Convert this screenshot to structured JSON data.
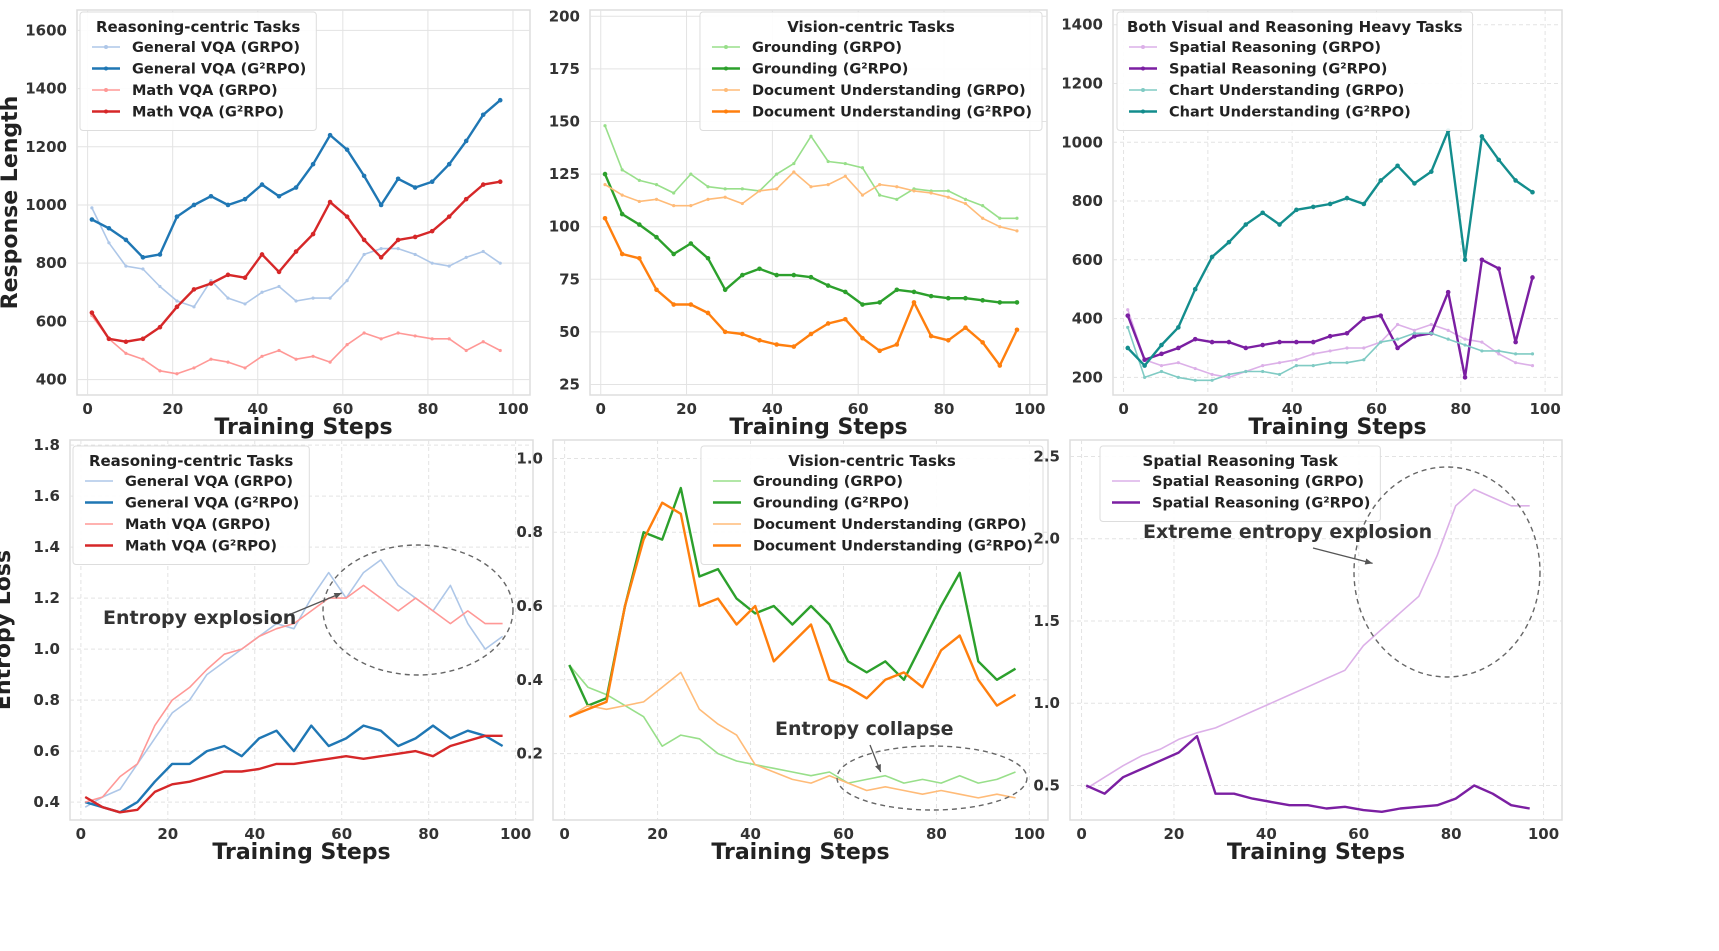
{
  "chart_data": [
    {
      "type": "line",
      "legend_title": "Reasoning-centric Tasks",
      "legend_placement": "top-left",
      "xlabel": "Training Steps",
      "ylabel": "Response Length",
      "xlim": [
        -2.5,
        104
      ],
      "ylim": [
        347,
        1670
      ],
      "xticks": [
        0,
        20,
        40,
        60,
        80,
        100
      ],
      "yticks": [
        400,
        600,
        800,
        1000,
        1200,
        1400,
        1600
      ],
      "grid": "solid",
      "x": [
        1,
        5,
        9,
        13,
        17,
        21,
        25,
        29,
        33,
        37,
        41,
        45,
        49,
        53,
        57,
        61,
        65,
        69,
        73,
        77,
        81,
        85,
        89,
        93,
        97
      ],
      "series": [
        {
          "name": "General VQA (GRPO)",
          "color": "#aec7e8",
          "values": [
            990,
            870,
            790,
            780,
            720,
            670,
            650,
            740,
            680,
            660,
            700,
            720,
            670,
            680,
            680,
            740,
            830,
            850,
            850,
            830,
            800,
            790,
            820,
            840,
            800
          ]
        },
        {
          "name": "General VQA (G²RPO)",
          "color": "#1f77b4",
          "values": [
            950,
            920,
            880,
            820,
            830,
            960,
            1000,
            1030,
            1000,
            1020,
            1070,
            1030,
            1060,
            1140,
            1240,
            1190,
            1100,
            1000,
            1090,
            1060,
            1080,
            1140,
            1220,
            1310,
            1360
          ]
        },
        {
          "name": "Math VQA (GRPO)",
          "color": "#ff9896",
          "values": [
            620,
            540,
            490,
            470,
            430,
            420,
            440,
            470,
            460,
            440,
            480,
            500,
            470,
            480,
            460,
            520,
            560,
            540,
            560,
            550,
            540,
            540,
            500,
            530,
            500
          ]
        },
        {
          "name": "Math VQA (G²RPO)",
          "color": "#d62728",
          "values": [
            630,
            540,
            530,
            540,
            580,
            650,
            710,
            730,
            760,
            750,
            830,
            770,
            840,
            900,
            1010,
            960,
            880,
            820,
            880,
            890,
            910,
            960,
            1020,
            1070,
            1080
          ]
        }
      ],
      "annotations": []
    },
    {
      "type": "line",
      "legend_title": "Vision-centric Tasks",
      "legend_placement": "top-right",
      "xlabel": "Training Steps",
      "ylabel": "",
      "xlim": [
        -2.5,
        104
      ],
      "ylim": [
        20,
        203
      ],
      "xticks": [
        0,
        20,
        40,
        60,
        80,
        100
      ],
      "yticks": [
        25,
        50,
        75,
        100,
        125,
        150,
        175,
        200
      ],
      "grid": "solid",
      "x": [
        1,
        5,
        9,
        13,
        17,
        21,
        25,
        29,
        33,
        37,
        41,
        45,
        49,
        53,
        57,
        61,
        65,
        69,
        73,
        77,
        81,
        85,
        89,
        93,
        97
      ],
      "series": [
        {
          "name": "Grounding (GRPO)",
          "color": "#98df8a",
          "values": [
            148,
            127,
            122,
            120,
            116,
            125,
            119,
            118,
            118,
            117,
            125,
            130,
            143,
            131,
            130,
            128,
            115,
            113,
            118,
            117,
            117,
            113,
            110,
            104,
            104
          ]
        },
        {
          "name": "Grounding (G²RPO)",
          "color": "#2ca02c",
          "values": [
            125,
            106,
            101,
            95,
            87,
            92,
            85,
            70,
            77,
            80,
            77,
            77,
            76,
            72,
            69,
            63,
            64,
            70,
            69,
            67,
            66,
            66,
            65,
            64,
            64
          ]
        },
        {
          "name": "Document Understanding (GRPO)",
          "color": "#ffbb78",
          "values": [
            120,
            115,
            112,
            113,
            110,
            110,
            113,
            114,
            111,
            117,
            118,
            126,
            119,
            120,
            124,
            115,
            120,
            119,
            117,
            116,
            114,
            111,
            104,
            100,
            98
          ]
        },
        {
          "name": "Document Understanding (G²RPO)",
          "color": "#ff7f0e",
          "values": [
            104,
            87,
            85,
            70,
            63,
            63,
            59,
            50,
            49,
            46,
            44,
            43,
            49,
            54,
            56,
            47,
            41,
            44,
            64,
            48,
            46,
            52,
            45,
            34,
            51
          ]
        }
      ],
      "annotations": []
    },
    {
      "type": "line",
      "legend_title": "Both Visual and Reasoning Heavy Tasks",
      "legend_placement": "top-left",
      "xlabel": "Training Steps",
      "ylabel": "",
      "xlim": [
        -2.5,
        104
      ],
      "ylim": [
        140,
        1450
      ],
      "xticks": [
        0,
        20,
        40,
        60,
        80,
        100
      ],
      "yticks": [
        200,
        400,
        600,
        800,
        1000,
        1200,
        1400
      ],
      "grid": "dashed",
      "x": [
        1,
        5,
        9,
        13,
        17,
        21,
        25,
        29,
        33,
        37,
        41,
        45,
        49,
        53,
        57,
        61,
        65,
        69,
        73,
        77,
        81,
        85,
        89,
        93,
        97
      ],
      "series": [
        {
          "name": "Spatial Reasoning (GRPO)",
          "color": "#dcb0e8",
          "values": [
            430,
            260,
            240,
            250,
            230,
            210,
            200,
            220,
            240,
            250,
            260,
            280,
            290,
            300,
            300,
            320,
            380,
            360,
            380,
            360,
            330,
            320,
            280,
            250,
            240
          ]
        },
        {
          "name": "Spatial Reasoning (G²RPO)",
          "color": "#7b1fa2",
          "values": [
            410,
            260,
            280,
            300,
            330,
            320,
            320,
            300,
            310,
            320,
            320,
            320,
            340,
            350,
            400,
            410,
            300,
            340,
            350,
            490,
            200,
            600,
            570,
            320,
            540
          ]
        },
        {
          "name": "Chart Understanding (GRPO)",
          "color": "#80cbc4",
          "values": [
            370,
            200,
            220,
            200,
            190,
            190,
            210,
            220,
            220,
            210,
            240,
            240,
            250,
            250,
            260,
            320,
            330,
            350,
            350,
            330,
            310,
            290,
            290,
            280,
            280
          ]
        },
        {
          "name": "Chart Understanding (G²RPO)",
          "color": "#138d8d",
          "values": [
            300,
            240,
            310,
            370,
            500,
            610,
            660,
            720,
            760,
            720,
            770,
            780,
            790,
            810,
            790,
            870,
            920,
            860,
            900,
            1040,
            600,
            1020,
            940,
            870,
            830
          ]
        }
      ],
      "annotations": []
    },
    {
      "type": "line",
      "legend_title": "Reasoning-centric Tasks",
      "legend_placement": "top-left",
      "xlabel": "Training Steps",
      "ylabel": "Entropy Loss",
      "xlim": [
        -2.5,
        104
      ],
      "ylim": [
        0.33,
        1.82
      ],
      "xticks": [
        0,
        20,
        40,
        60,
        80,
        100
      ],
      "yticks": [
        0.4,
        0.6,
        0.8,
        1.0,
        1.2,
        1.4,
        1.6,
        1.8
      ],
      "grid": "dashed",
      "x": [
        1,
        5,
        9,
        13,
        17,
        21,
        25,
        29,
        33,
        37,
        41,
        45,
        49,
        53,
        57,
        61,
        65,
        69,
        73,
        77,
        81,
        85,
        89,
        93,
        97
      ],
      "series": [
        {
          "name": "General VQA (GRPO)",
          "color": "#aec7e8",
          "values": [
            0.38,
            0.42,
            0.45,
            0.55,
            0.65,
            0.75,
            0.8,
            0.9,
            0.95,
            1.0,
            1.05,
            1.1,
            1.08,
            1.2,
            1.3,
            1.2,
            1.3,
            1.35,
            1.25,
            1.2,
            1.15,
            1.25,
            1.1,
            1.0,
            1.05
          ]
        },
        {
          "name": "General VQA (G²RPO)",
          "color": "#1f77b4",
          "values": [
            0.4,
            0.38,
            0.36,
            0.4,
            0.48,
            0.55,
            0.55,
            0.6,
            0.62,
            0.58,
            0.65,
            0.68,
            0.6,
            0.7,
            0.62,
            0.65,
            0.7,
            0.68,
            0.62,
            0.65,
            0.7,
            0.65,
            0.68,
            0.66,
            0.62
          ]
        },
        {
          "name": "Math VQA (GRPO)",
          "color": "#ff9896",
          "values": [
            0.4,
            0.42,
            0.5,
            0.55,
            0.7,
            0.8,
            0.85,
            0.92,
            0.98,
            1.0,
            1.05,
            1.08,
            1.1,
            1.15,
            1.2,
            1.2,
            1.25,
            1.2,
            1.15,
            1.2,
            1.15,
            1.1,
            1.15,
            1.1,
            1.1
          ]
        },
        {
          "name": "Math VQA (G²RPO)",
          "color": "#d62728",
          "values": [
            0.42,
            0.38,
            0.36,
            0.37,
            0.44,
            0.47,
            0.48,
            0.5,
            0.52,
            0.52,
            0.53,
            0.55,
            0.55,
            0.56,
            0.57,
            0.58,
            0.57,
            0.58,
            0.59,
            0.6,
            0.58,
            0.62,
            0.64,
            0.66,
            0.66
          ]
        }
      ],
      "annotations": [
        {
          "text": "Entropy explosion",
          "target": [
            60,
            1.22
          ]
        }
      ]
    },
    {
      "type": "line",
      "legend_title": "Vision-centric Tasks",
      "legend_placement": "top-right",
      "xlabel": "Training Steps",
      "ylabel": "",
      "xlim": [
        -2.5,
        104
      ],
      "ylim": [
        0.02,
        1.05
      ],
      "xticks": [
        0,
        20,
        40,
        60,
        80,
        100
      ],
      "yticks": [
        0.2,
        0.4,
        0.6,
        0.8,
        1.0
      ],
      "grid": "dashed",
      "x": [
        1,
        5,
        9,
        13,
        17,
        21,
        25,
        29,
        33,
        37,
        41,
        45,
        49,
        53,
        57,
        61,
        65,
        69,
        73,
        77,
        81,
        85,
        89,
        93,
        97
      ],
      "series": [
        {
          "name": "Grounding (GRPO)",
          "color": "#98df8a",
          "values": [
            0.44,
            0.38,
            0.36,
            0.33,
            0.3,
            0.22,
            0.25,
            0.24,
            0.2,
            0.18,
            0.17,
            0.16,
            0.15,
            0.14,
            0.15,
            0.12,
            0.13,
            0.14,
            0.12,
            0.13,
            0.12,
            0.14,
            0.12,
            0.13,
            0.15
          ]
        },
        {
          "name": "Grounding (G²RPO)",
          "color": "#2ca02c",
          "values": [
            0.44,
            0.33,
            0.35,
            0.6,
            0.8,
            0.78,
            0.92,
            0.68,
            0.7,
            0.62,
            0.58,
            0.6,
            0.55,
            0.6,
            0.55,
            0.45,
            0.42,
            0.45,
            0.4,
            0.5,
            0.6,
            0.69,
            0.45,
            0.4,
            0.43
          ]
        },
        {
          "name": "Document Understanding (GRPO)",
          "color": "#ffbb78",
          "values": [
            0.3,
            0.33,
            0.32,
            0.33,
            0.34,
            0.38,
            0.42,
            0.32,
            0.28,
            0.25,
            0.17,
            0.15,
            0.13,
            0.12,
            0.14,
            0.12,
            0.1,
            0.11,
            0.1,
            0.09,
            0.1,
            0.09,
            0.08,
            0.09,
            0.08
          ]
        },
        {
          "name": "Document Understanding (G²RPO)",
          "color": "#ff7f0e",
          "values": [
            0.3,
            0.32,
            0.34,
            0.6,
            0.78,
            0.88,
            0.85,
            0.6,
            0.62,
            0.55,
            0.6,
            0.45,
            0.5,
            0.55,
            0.4,
            0.38,
            0.35,
            0.4,
            0.42,
            0.38,
            0.48,
            0.52,
            0.4,
            0.33,
            0.36
          ]
        }
      ],
      "annotations": [
        {
          "text": "Entropy collapse",
          "target": [
            68,
            0.15
          ]
        }
      ]
    },
    {
      "type": "line",
      "legend_title": "Spatial Reasoning Task",
      "legend_placement": "top-left",
      "xlabel": "Training Steps",
      "ylabel": "",
      "xlim": [
        -2.5,
        104
      ],
      "ylim": [
        0.29,
        2.6
      ],
      "xticks": [
        0,
        20,
        40,
        60,
        80,
        100
      ],
      "yticks": [
        0.5,
        1.0,
        1.5,
        2.0,
        2.5
      ],
      "grid": "dashed",
      "x": [
        1,
        5,
        9,
        13,
        17,
        21,
        25,
        29,
        33,
        37,
        41,
        45,
        49,
        53,
        57,
        61,
        65,
        69,
        73,
        77,
        81,
        85,
        89,
        93,
        97
      ],
      "series": [
        {
          "name": "Spatial Reasoning (GRPO)",
          "color": "#dcb0e8",
          "values": [
            0.48,
            0.55,
            0.62,
            0.68,
            0.72,
            0.78,
            0.82,
            0.85,
            0.9,
            0.95,
            1.0,
            1.05,
            1.1,
            1.15,
            1.2,
            1.35,
            1.45,
            1.55,
            1.65,
            1.9,
            2.2,
            2.3,
            2.25,
            2.2,
            2.2
          ]
        },
        {
          "name": "Spatial Reasoning (G²RPO)",
          "color": "#7b1fa2",
          "values": [
            0.5,
            0.45,
            0.55,
            0.6,
            0.65,
            0.7,
            0.8,
            0.45,
            0.45,
            0.42,
            0.4,
            0.38,
            0.38,
            0.36,
            0.37,
            0.35,
            0.34,
            0.36,
            0.37,
            0.38,
            0.42,
            0.5,
            0.45,
            0.38,
            0.36
          ]
        }
      ],
      "annotations": [
        {
          "text": "Extreme entropy explosion",
          "target": [
            63,
            1.85
          ]
        }
      ]
    }
  ]
}
